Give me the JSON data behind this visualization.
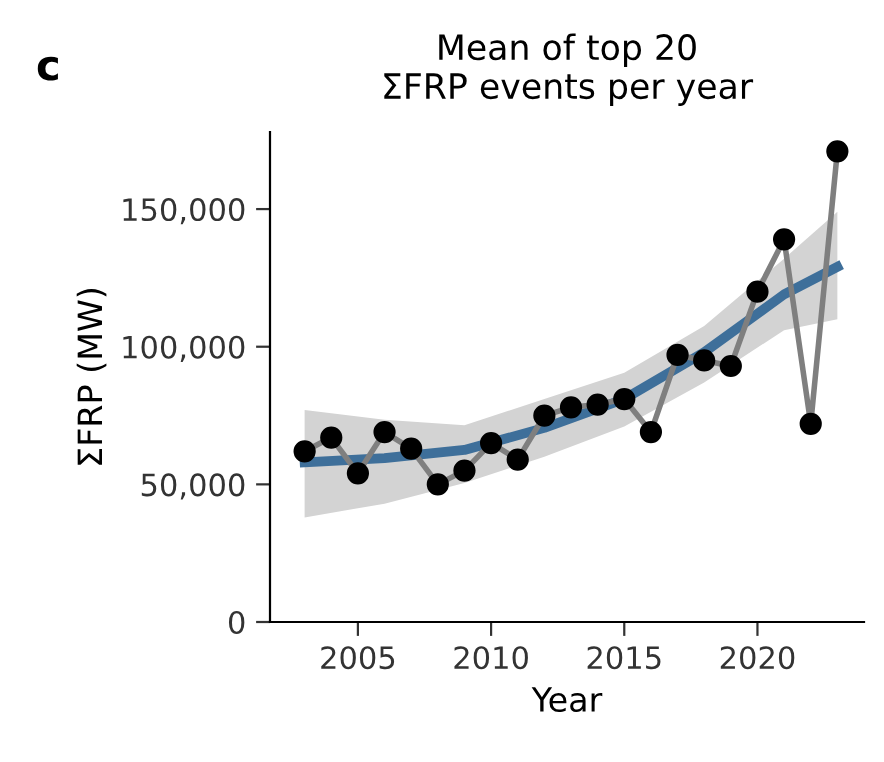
{
  "chart_data": {
    "type": "line",
    "title": "Mean of top 20\nΣFRP events per year",
    "xlabel": "Year",
    "ylabel": "ΣFRP (MW)",
    "annotations": [
      "c"
    ],
    "series": [
      {
        "color": "#7f7f7f",
        "marker": "circle",
        "x": [
          2003,
          2004,
          2005,
          2006,
          2007,
          2008,
          2009,
          2010,
          2011,
          2012,
          2013,
          2014,
          2015,
          2016,
          2017,
          2018,
          2019,
          2020,
          2021,
          2022,
          2023
        ],
        "values": [
          62000,
          67000,
          54000,
          69000,
          63000,
          50000,
          55000,
          65000,
          59000,
          75000,
          78000,
          79000,
          81000,
          69000,
          97000,
          95000,
          93000,
          120000,
          139000,
          72000,
          171000
        ]
      },
      {
        "color": "#3e6f9a",
        "marker": "none",
        "x": [
          2003,
          2006,
          2009,
          2012,
          2015,
          2018,
          2021,
          2023
        ],
        "values": [
          58000,
          59500,
          62500,
          70500,
          81000,
          98000,
          119000,
          129000
        ],
        "lower": [
          38000,
          43000,
          50500,
          60000,
          71000,
          87000,
          106000,
          110000
        ],
        "upper": [
          77000,
          73500,
          71500,
          81000,
          90500,
          107500,
          132000,
          149000
        ]
      }
    ],
    "xlim": [
      2001.7,
      2024
    ],
    "xticks": [
      2005,
      2010,
      2015,
      2020
    ],
    "ylim": [
      0,
      178000
    ],
    "yticks": [
      {
        "value": 0,
        "label": "0"
      },
      {
        "value": 50000,
        "label": "50,000"
      },
      {
        "value": 100000,
        "label": "100,000"
      },
      {
        "value": 150000,
        "label": "150,000"
      }
    ],
    "grid": false,
    "legend": false
  }
}
